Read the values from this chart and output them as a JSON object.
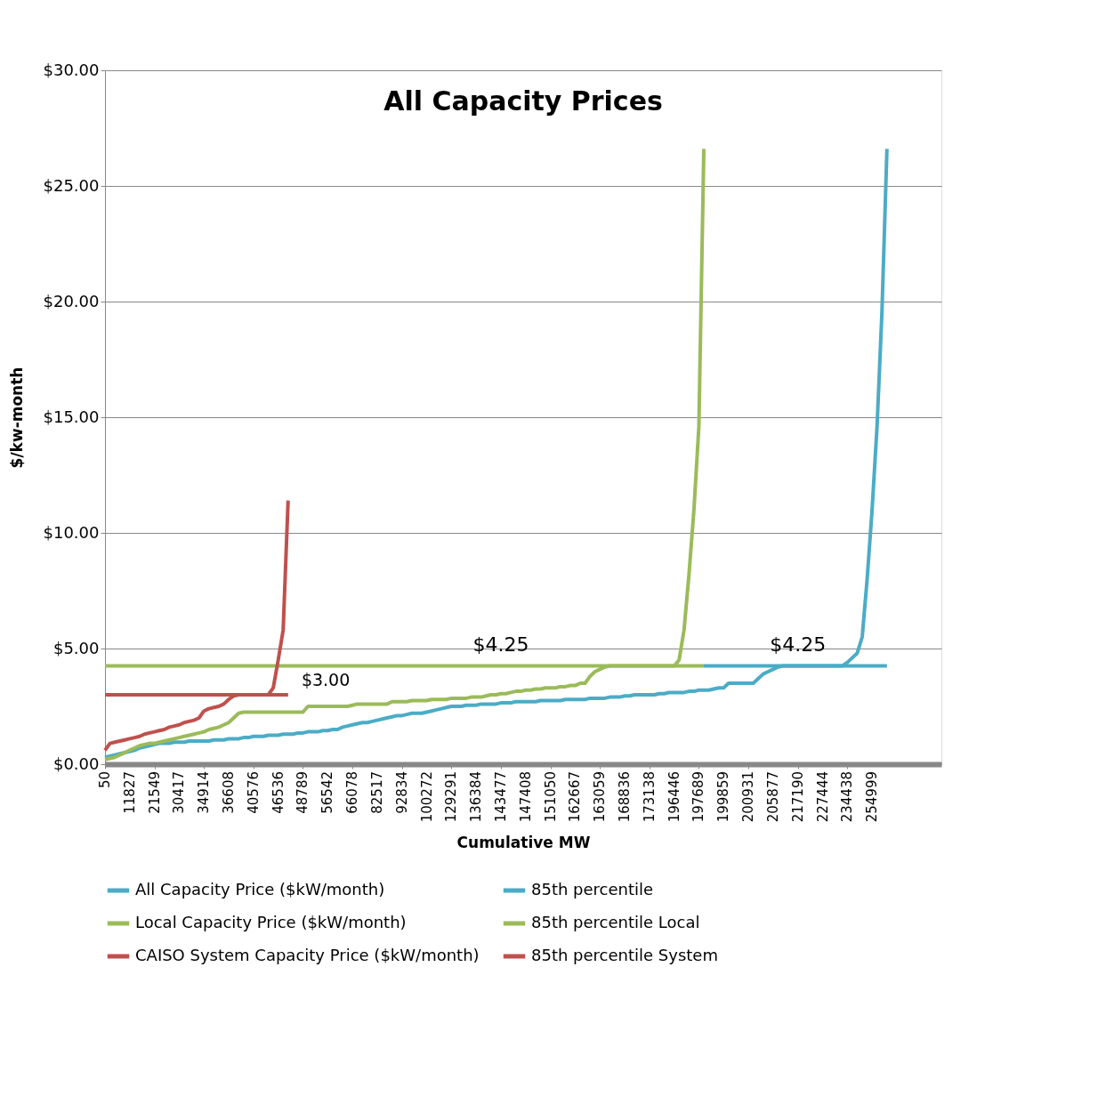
{
  "chart_data": {
    "type": "line",
    "title": "All Capacity Prices",
    "xlabel": "Cumulative MW",
    "ylabel": "$/kw-month",
    "categories": [
      "50",
      null,
      null,
      null,
      null,
      "11827",
      null,
      null,
      null,
      null,
      "21549",
      null,
      null,
      null,
      null,
      "30417",
      null,
      null,
      null,
      null,
      "34914",
      null,
      null,
      null,
      null,
      "36608",
      null,
      null,
      null,
      null,
      "40576",
      null,
      null,
      null,
      null,
      "46536",
      null,
      null,
      null,
      null,
      "48789",
      null,
      null,
      null,
      null,
      "56542",
      null,
      null,
      null,
      null,
      "66078",
      null,
      null,
      null,
      null,
      "82517",
      null,
      null,
      null,
      null,
      "92834",
      null,
      null,
      null,
      null,
      "100272",
      null,
      null,
      null,
      null,
      "129291",
      null,
      null,
      null,
      null,
      "136384",
      null,
      null,
      null,
      null,
      "143477",
      null,
      null,
      null,
      null,
      "147408",
      null,
      null,
      null,
      null,
      "151050",
      null,
      null,
      null,
      null,
      "162667",
      null,
      null,
      null,
      null,
      "163059",
      null,
      null,
      null,
      null,
      "168836",
      null,
      null,
      null,
      null,
      "173138",
      null,
      null,
      null,
      null,
      "196446",
      null,
      null,
      null,
      null,
      "197689",
      null,
      null,
      null,
      null,
      "199859",
      null,
      null,
      null,
      null,
      "200931",
      null,
      null,
      null,
      null,
      "205877",
      null,
      null,
      null,
      null,
      "217190",
      null,
      null,
      null,
      null,
      "227444",
      null,
      null,
      null,
      null,
      "234438",
      null,
      null,
      null,
      null,
      "254999",
      null,
      null,
      null,
      null,
      null,
      null,
      null,
      null,
      null,
      null,
      null,
      null,
      null,
      null
    ],
    "series": [
      {
        "name": "All Capacity Price  ($kW/month)",
        "color": "#4bacc6",
        "values": [
          0.3,
          0.35,
          0.4,
          0.45,
          0.5,
          0.55,
          0.6,
          0.7,
          0.75,
          0.8,
          0.85,
          0.9,
          0.9,
          0.9,
          0.95,
          0.95,
          0.95,
          1.0,
          1.0,
          1.0,
          1.0,
          1.0,
          1.05,
          1.05,
          1.05,
          1.1,
          1.1,
          1.1,
          1.15,
          1.15,
          1.2,
          1.2,
          1.2,
          1.25,
          1.25,
          1.25,
          1.3,
          1.3,
          1.3,
          1.35,
          1.35,
          1.4,
          1.4,
          1.4,
          1.45,
          1.45,
          1.5,
          1.5,
          1.6,
          1.65,
          1.7,
          1.75,
          1.8,
          1.8,
          1.85,
          1.9,
          1.95,
          2.0,
          2.05,
          2.1,
          2.1,
          2.15,
          2.2,
          2.2,
          2.2,
          2.25,
          2.3,
          2.35,
          2.4,
          2.45,
          2.5,
          2.5,
          2.5,
          2.55,
          2.55,
          2.55,
          2.6,
          2.6,
          2.6,
          2.6,
          2.65,
          2.65,
          2.65,
          2.7,
          2.7,
          2.7,
          2.7,
          2.7,
          2.75,
          2.75,
          2.75,
          2.75,
          2.75,
          2.8,
          2.8,
          2.8,
          2.8,
          2.8,
          2.85,
          2.85,
          2.85,
          2.85,
          2.9,
          2.9,
          2.9,
          2.95,
          2.95,
          3.0,
          3.0,
          3.0,
          3.0,
          3.0,
          3.05,
          3.05,
          3.1,
          3.1,
          3.1,
          3.1,
          3.15,
          3.15,
          3.2,
          3.2,
          3.2,
          3.25,
          3.3,
          3.3,
          3.5,
          3.5,
          3.5,
          3.5,
          3.5,
          3.5,
          3.7,
          3.9,
          4.0,
          4.1,
          4.2,
          4.25,
          4.25,
          4.25,
          4.25,
          4.25,
          4.25,
          4.25,
          4.25,
          4.25,
          4.25,
          4.25,
          4.25,
          4.25,
          4.4,
          4.6,
          4.8,
          5.5,
          8,
          11,
          14.6,
          19.6,
          26.6,
          null,
          null,
          null,
          null,
          null,
          null,
          null,
          null,
          null,
          null,
          null
        ]
      },
      {
        "name": "85th percentile",
        "color": "#4bacc6",
        "values": [
          null,
          null,
          null,
          null,
          null,
          null,
          null,
          null,
          null,
          null,
          null,
          null,
          null,
          null,
          null,
          null,
          null,
          null,
          null,
          null,
          null,
          null,
          null,
          null,
          null,
          null,
          null,
          null,
          null,
          null,
          null,
          null,
          null,
          null,
          null,
          null,
          null,
          null,
          null,
          null,
          null,
          null,
          null,
          null,
          null,
          null,
          null,
          null,
          null,
          null,
          null,
          null,
          null,
          null,
          null,
          null,
          null,
          null,
          null,
          null,
          null,
          null,
          null,
          null,
          null,
          null,
          null,
          null,
          null,
          null,
          null,
          null,
          null,
          null,
          null,
          null,
          null,
          null,
          null,
          null,
          null,
          null,
          null,
          null,
          null,
          null,
          null,
          null,
          null,
          null,
          null,
          null,
          null,
          null,
          null,
          null,
          null,
          null,
          null,
          null,
          null,
          null,
          null,
          null,
          null,
          null,
          null,
          null,
          null,
          null,
          null,
          null,
          null,
          null,
          null,
          null,
          null,
          null,
          null,
          null,
          null,
          4.25,
          4.25,
          4.25,
          4.25,
          4.25,
          4.25,
          4.25,
          4.25,
          4.25,
          4.25,
          4.25,
          4.25,
          4.25,
          4.25,
          4.25,
          4.25,
          4.25,
          4.25,
          4.25,
          4.25,
          4.25,
          4.25,
          4.25,
          4.25,
          4.25,
          4.25,
          4.25,
          4.25,
          4.25,
          4.25,
          4.25,
          4.25,
          4.25,
          4.25,
          4.25,
          4.25,
          4.25,
          4.25,
          null,
          null,
          null,
          null,
          null,
          null,
          null,
          null,
          null,
          null,
          null
        ]
      },
      {
        "name": "Local Capacity Price  ($kW/month)",
        "color": "#9bbb59",
        "values": [
          0.2,
          0.25,
          0.3,
          0.4,
          0.5,
          0.6,
          0.7,
          0.8,
          0.85,
          0.9,
          0.9,
          0.95,
          1.0,
          1.05,
          1.1,
          1.15,
          1.2,
          1.25,
          1.3,
          1.35,
          1.4,
          1.5,
          1.55,
          1.6,
          1.7,
          1.8,
          2.0,
          2.2,
          2.25,
          2.25,
          2.25,
          2.25,
          2.25,
          2.25,
          2.25,
          2.25,
          2.25,
          2.25,
          2.25,
          2.25,
          2.25,
          2.5,
          2.5,
          2.5,
          2.5,
          2.5,
          2.5,
          2.5,
          2.5,
          2.5,
          2.55,
          2.6,
          2.6,
          2.6,
          2.6,
          2.6,
          2.6,
          2.6,
          2.7,
          2.7,
          2.7,
          2.7,
          2.75,
          2.75,
          2.75,
          2.75,
          2.8,
          2.8,
          2.8,
          2.8,
          2.85,
          2.85,
          2.85,
          2.85,
          2.9,
          2.9,
          2.9,
          2.95,
          3.0,
          3.0,
          3.05,
          3.05,
          3.1,
          3.15,
          3.15,
          3.2,
          3.2,
          3.25,
          3.25,
          3.3,
          3.3,
          3.3,
          3.35,
          3.35,
          3.4,
          3.4,
          3.5,
          3.5,
          3.8,
          4.0,
          4.1,
          4.2,
          4.25,
          4.25,
          4.25,
          4.25,
          4.25,
          4.25,
          4.25,
          4.25,
          4.25,
          4.25,
          4.25,
          4.25,
          4.25,
          4.25,
          4.5,
          5.8,
          8.2,
          11,
          14.6,
          26.6,
          null,
          null,
          null,
          null,
          null,
          null,
          null,
          null,
          null,
          null,
          null,
          null,
          null,
          null,
          null,
          null,
          null,
          null,
          null,
          null,
          null,
          null,
          null,
          null,
          null,
          null,
          null,
          null,
          null,
          null,
          null,
          null,
          null,
          null,
          null,
          null,
          null,
          null,
          null,
          null,
          null,
          null,
          null,
          null,
          null,
          null,
          null,
          null
        ]
      },
      {
        "name": "85th percentile Local",
        "color": "#9bbb59",
        "values": [
          4.25,
          4.25,
          4.25,
          4.25,
          4.25,
          4.25,
          4.25,
          4.25,
          4.25,
          4.25,
          4.25,
          4.25,
          4.25,
          4.25,
          4.25,
          4.25,
          4.25,
          4.25,
          4.25,
          4.25,
          4.25,
          4.25,
          4.25,
          4.25,
          4.25,
          4.25,
          4.25,
          4.25,
          4.25,
          4.25,
          4.25,
          4.25,
          4.25,
          4.25,
          4.25,
          4.25,
          4.25,
          4.25,
          4.25,
          4.25,
          4.25,
          4.25,
          4.25,
          4.25,
          4.25,
          4.25,
          4.25,
          4.25,
          4.25,
          4.25,
          4.25,
          4.25,
          4.25,
          4.25,
          4.25,
          4.25,
          4.25,
          4.25,
          4.25,
          4.25,
          4.25,
          4.25,
          4.25,
          4.25,
          4.25,
          4.25,
          4.25,
          4.25,
          4.25,
          4.25,
          4.25,
          4.25,
          4.25,
          4.25,
          4.25,
          4.25,
          4.25,
          4.25,
          4.25,
          4.25,
          4.25,
          4.25,
          4.25,
          4.25,
          4.25,
          4.25,
          4.25,
          4.25,
          4.25,
          4.25,
          4.25,
          4.25,
          4.25,
          4.25,
          4.25,
          4.25,
          4.25,
          4.25,
          4.25,
          4.25,
          4.25,
          4.25,
          4.25,
          4.25,
          4.25,
          4.25,
          4.25,
          4.25,
          4.25,
          4.25,
          4.25,
          4.25,
          4.25,
          4.25,
          4.25,
          4.25,
          4.25,
          4.25,
          4.25,
          4.25,
          4.25,
          4.25,
          null,
          null,
          null,
          null,
          null,
          null,
          null,
          null,
          null,
          null,
          null,
          null,
          null,
          null,
          null,
          null,
          null,
          null,
          null,
          null,
          null,
          null,
          null,
          null,
          null,
          null,
          null,
          null,
          null,
          null,
          null,
          null,
          null,
          null,
          null,
          null,
          null,
          null,
          null,
          null,
          null,
          null,
          null,
          null,
          null,
          null,
          null,
          null
        ]
      },
      {
        "name": "CAISO System Capacity Price  ($kW/month)",
        "color": "#c0504d",
        "values": [
          0.6,
          0.9,
          0.95,
          1.0,
          1.05,
          1.1,
          1.15,
          1.2,
          1.3,
          1.35,
          1.4,
          1.45,
          1.5,
          1.6,
          1.65,
          1.7,
          1.8,
          1.85,
          1.9,
          2.0,
          2.3,
          2.4,
          2.45,
          2.5,
          2.6,
          2.8,
          2.95,
          3.0,
          3.0,
          3.0,
          3.0,
          3.0,
          3.0,
          3.0,
          3.3,
          4.5,
          5.8,
          11.4,
          null,
          null,
          null,
          null,
          null,
          null,
          null,
          null,
          null,
          null,
          null,
          null,
          null,
          null,
          null,
          null,
          null,
          null,
          null,
          null,
          null,
          null,
          null,
          null,
          null,
          null,
          null,
          null,
          null,
          null,
          null,
          null,
          null,
          null,
          null,
          null,
          null,
          null,
          null,
          null,
          null,
          null,
          null,
          null,
          null,
          null,
          null,
          null,
          null,
          null,
          null,
          null,
          null,
          null,
          null,
          null,
          null,
          null,
          null,
          null,
          null,
          null,
          null,
          null,
          null,
          null,
          null,
          null,
          null,
          null,
          null,
          null,
          null,
          null,
          null,
          null,
          null,
          null,
          null,
          null,
          null,
          null,
          null,
          null,
          null,
          null,
          null,
          null,
          null,
          null,
          null,
          null,
          null,
          null,
          null,
          null,
          null,
          null,
          null,
          null,
          null,
          null,
          null,
          null,
          null,
          null,
          null,
          null,
          null,
          null,
          null,
          null,
          null,
          null,
          null,
          null,
          null,
          null,
          null,
          null,
          null,
          null,
          null,
          null,
          null,
          null,
          null,
          null,
          null,
          null,
          null,
          null
        ]
      },
      {
        "name": "85th percentile System",
        "color": "#c0504d",
        "values": [
          3.0,
          3.0,
          3.0,
          3.0,
          3.0,
          3.0,
          3.0,
          3.0,
          3.0,
          3.0,
          3.0,
          3.0,
          3.0,
          3.0,
          3.0,
          3.0,
          3.0,
          3.0,
          3.0,
          3.0,
          3.0,
          3.0,
          3.0,
          3.0,
          3.0,
          3.0,
          3.0,
          3.0,
          3.0,
          3.0,
          3.0,
          3.0,
          3.0,
          3.0,
          3.0,
          3.0,
          3.0,
          3.0,
          null,
          null,
          null,
          null,
          null,
          null,
          null,
          null,
          null,
          null,
          null,
          null,
          null,
          null,
          null,
          null,
          null,
          null,
          null,
          null,
          null,
          null,
          null,
          null,
          null,
          null,
          null,
          null,
          null,
          null,
          null,
          null,
          null,
          null,
          null,
          null,
          null,
          null,
          null,
          null,
          null,
          null,
          null,
          null,
          null,
          null,
          null,
          null,
          null,
          null,
          null,
          null,
          null,
          null,
          null,
          null,
          null,
          null,
          null,
          null,
          null,
          null,
          null,
          null,
          null,
          null,
          null,
          null,
          null,
          null,
          null,
          null,
          null,
          null,
          null,
          null,
          null,
          null,
          null,
          null,
          null,
          null,
          null,
          null,
          null,
          null,
          null,
          null,
          null,
          null,
          null,
          null,
          null,
          null,
          null,
          null,
          null,
          null,
          null,
          null,
          null,
          null,
          null,
          null,
          null,
          null,
          null,
          null,
          null,
          null,
          null,
          null,
          null,
          null,
          null,
          null,
          null,
          null,
          null,
          null,
          null,
          null,
          null,
          null,
          null,
          null,
          null,
          null,
          null,
          null,
          null,
          null
        ]
      }
    ],
    "ylim": [
      0,
      30
    ],
    "yticks": [
      {
        "value": 0,
        "label": "$0.00"
      },
      {
        "value": 5,
        "label": "$5.00"
      },
      {
        "value": 10,
        "label": "$10.00"
      },
      {
        "value": 15,
        "label": "$15.00"
      },
      {
        "value": 20,
        "label": "$20.00"
      },
      {
        "value": 25,
        "label": "$25.00"
      },
      {
        "value": 30,
        "label": "$30.00"
      }
    ],
    "annotations": [
      {
        "text": "$4.25",
        "x": "143477",
        "y": 4.25
      },
      {
        "text": "$4.25",
        "x": "217190",
        "y": 4.25
      },
      "$3.00"
    ],
    "grid": "y",
    "legend": "bottom"
  }
}
